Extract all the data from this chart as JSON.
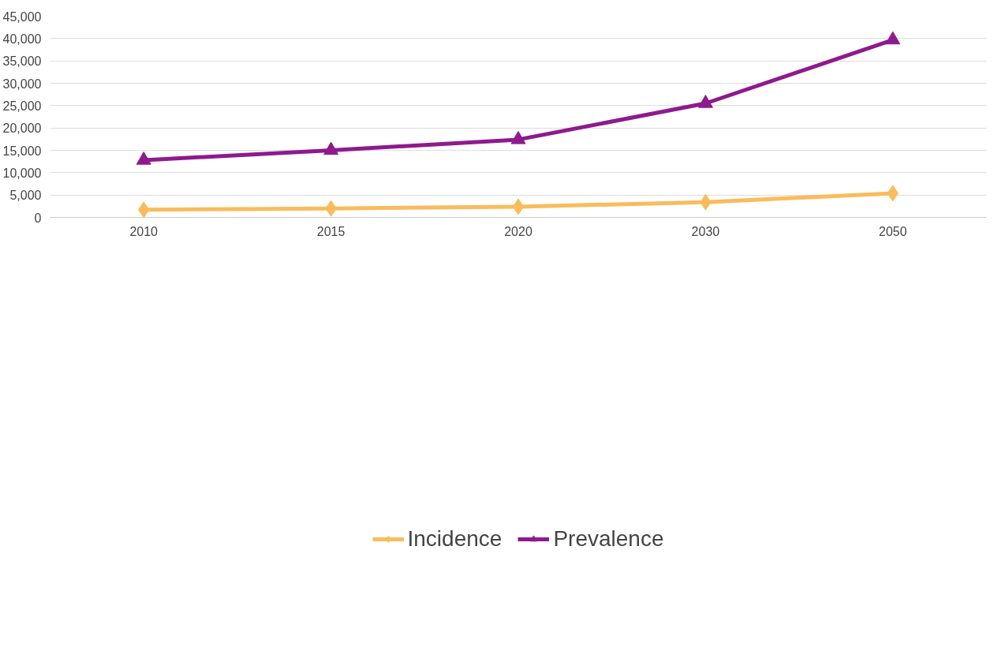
{
  "chart_data": {
    "type": "line",
    "categories": [
      "2010",
      "2015",
      "2020",
      "2030",
      "2050"
    ],
    "series": [
      {
        "name": "Incidence",
        "color": "#f9bc5c",
        "marker": "diamond",
        "values": [
          1700,
          2000,
          2400,
          3400,
          5400
        ]
      },
      {
        "name": "Prevalence",
        "color": "#8e1a8e",
        "marker": "triangle",
        "values": [
          12800,
          15000,
          17400,
          25500,
          39700
        ]
      }
    ],
    "ylim": [
      0,
      45000
    ],
    "yticks": [
      {
        "value": 0,
        "label": "0"
      },
      {
        "value": 5000,
        "label": "5,000"
      },
      {
        "value": 10000,
        "label": "10,000"
      },
      {
        "value": 15000,
        "label": "15,000"
      },
      {
        "value": 20000,
        "label": "20,000"
      },
      {
        "value": 25000,
        "label": "25,000"
      },
      {
        "value": 30000,
        "label": "30,000"
      },
      {
        "value": 35000,
        "label": "35,000"
      },
      {
        "value": 40000,
        "label": "40,000"
      },
      {
        "value": 45000,
        "label": "45,000"
      }
    ],
    "grid": "y",
    "legend": "bottom",
    "line_style": "solid"
  }
}
